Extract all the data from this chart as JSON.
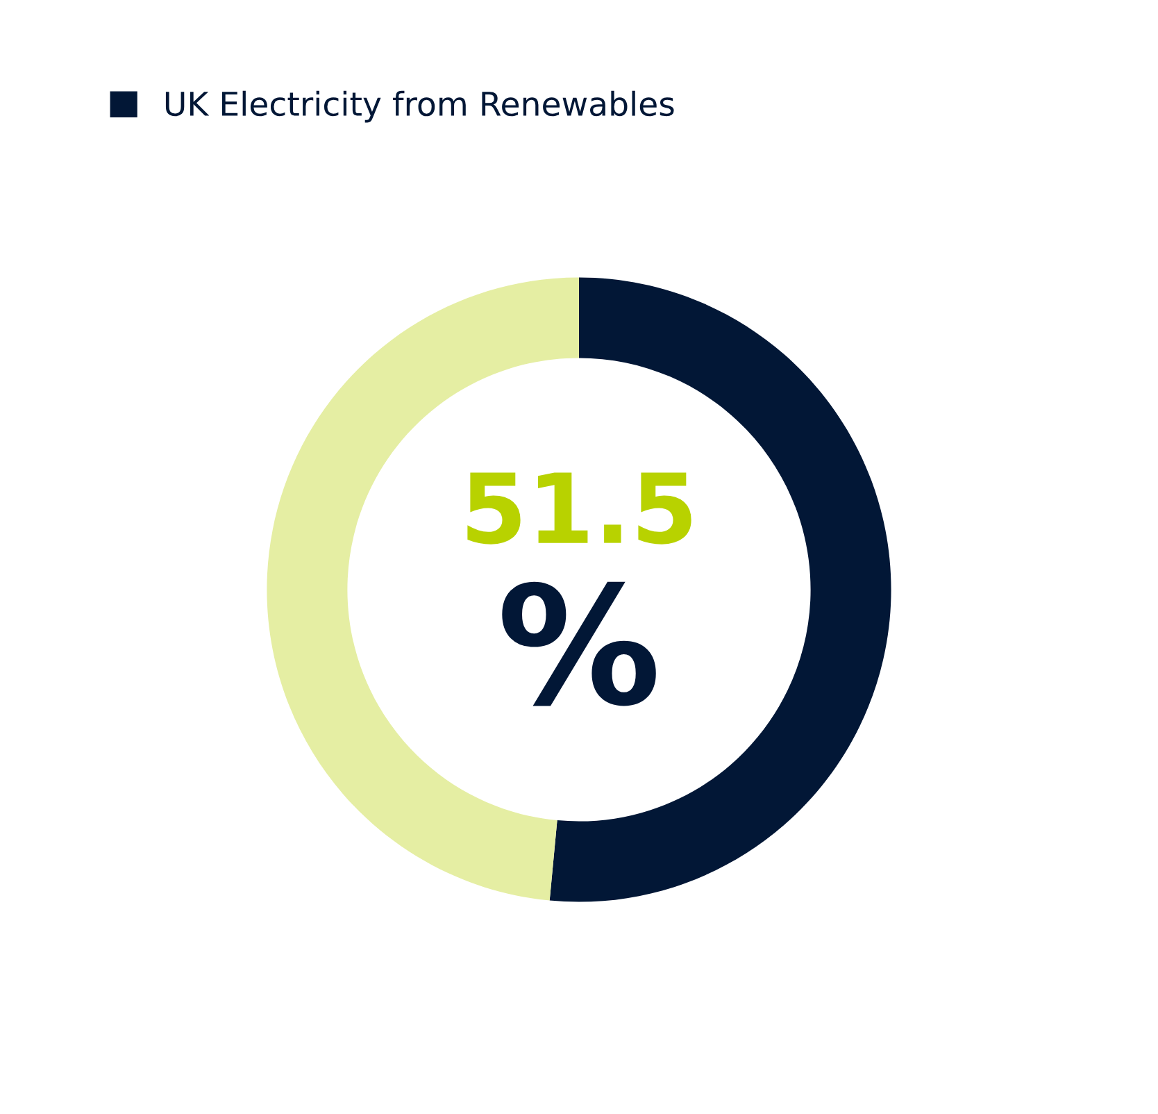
{
  "chart_data": {
    "type": "donut",
    "categories": [
      "UK Electricity from Renewables",
      null
    ],
    "values": [
      51.5,
      48.5
    ],
    "colors": [
      "#021736",
      "#e5eea3"
    ],
    "value_labels": [
      "51.5",
      null
    ],
    "annotations": [
      "%"
    ],
    "legend": "top left"
  }
}
